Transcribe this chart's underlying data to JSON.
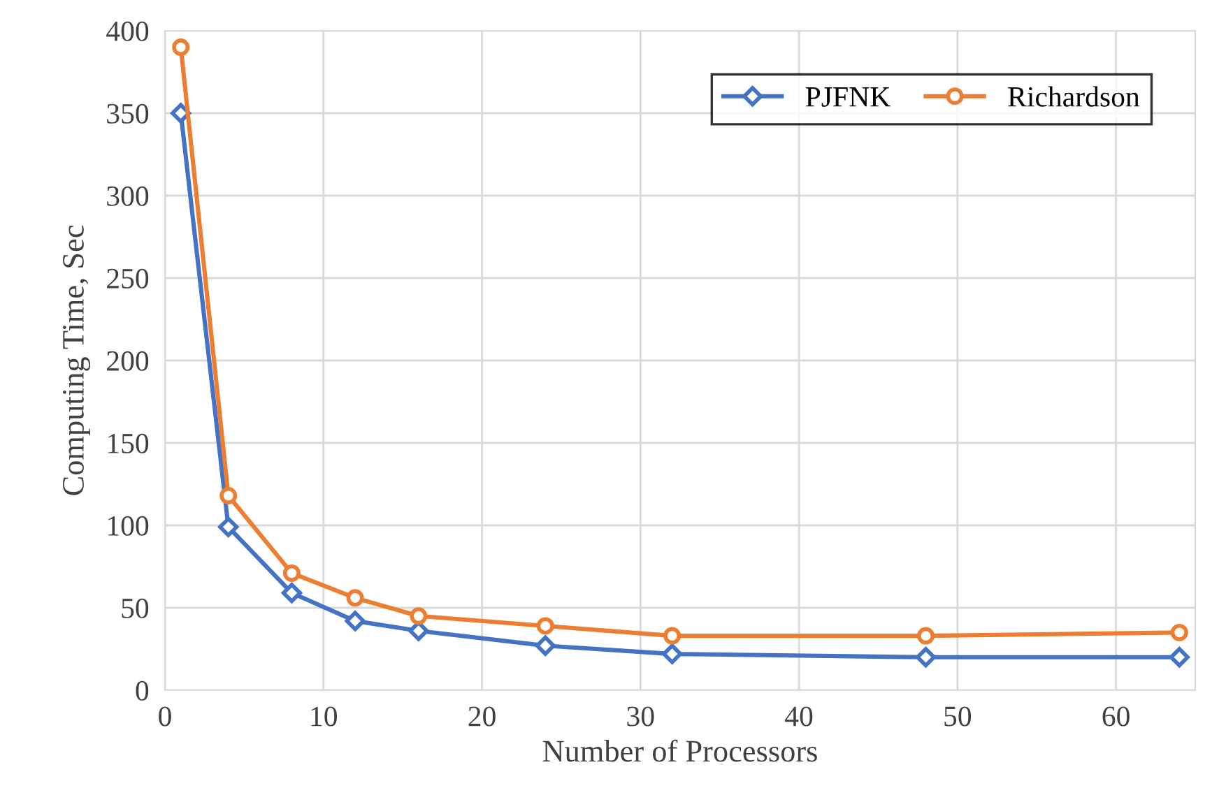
{
  "chart_data": {
    "type": "line",
    "xlabel": "Number of Processors",
    "ylabel": "Computing Time, Sec",
    "x": [
      1,
      4,
      8,
      12,
      16,
      24,
      32,
      48,
      64
    ],
    "series": [
      {
        "name": "PJFNK",
        "color": "#4472c4",
        "marker": "diamond",
        "values": [
          350,
          99,
          59,
          42,
          36,
          27,
          22,
          20,
          20
        ]
      },
      {
        "name": "Richardson",
        "color": "#ed7d31",
        "marker": "circle",
        "values": [
          390,
          118,
          71,
          56,
          45,
          39,
          33,
          33,
          35
        ]
      }
    ],
    "xlim": [
      0,
      65
    ],
    "xticks": [
      0,
      10,
      20,
      30,
      40,
      50,
      60
    ],
    "ylim": [
      0,
      400
    ],
    "yticks": [
      0,
      50,
      100,
      150,
      200,
      250,
      300,
      350,
      400
    ],
    "grid": true,
    "legend": "top right",
    "line_style": "solid"
  }
}
